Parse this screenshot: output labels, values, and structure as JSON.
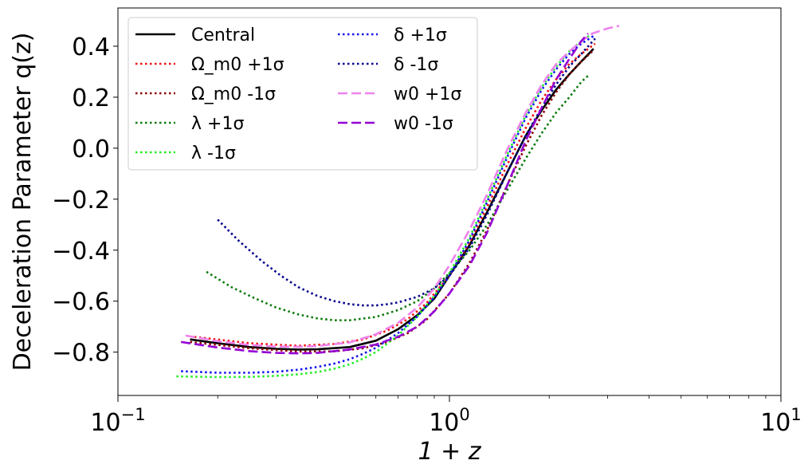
{
  "chart_data": {
    "type": "line",
    "xscale": "log",
    "xlim": [
      0.1,
      10
    ],
    "ylim": [
      -0.97,
      0.55
    ],
    "xlabel": "1 + z",
    "ylabel": "Deceleration Parameter q(z)",
    "x_ticks": [
      {
        "value": 0.1,
        "base": "10",
        "exp": "−1"
      },
      {
        "value": 1,
        "base": "10",
        "exp": "0"
      },
      {
        "value": 10,
        "base": "10",
        "exp": "1"
      }
    ],
    "y_ticks": [
      {
        "value": 0.4,
        "label": "0.4"
      },
      {
        "value": 0.2,
        "label": "0.2"
      },
      {
        "value": 0.0,
        "label": "0.0"
      },
      {
        "value": -0.2,
        "label": "−0.2"
      },
      {
        "value": -0.4,
        "label": "−0.4"
      },
      {
        "value": -0.6,
        "label": "−0.6"
      },
      {
        "value": -0.8,
        "label": "−0.8"
      }
    ],
    "legend_position": "top-left",
    "legend_columns": 2,
    "series": [
      {
        "name": "Central",
        "color": "#000000",
        "style": "solid",
        "x": [
          0.165,
          0.2,
          0.25,
          0.3,
          0.35,
          0.4,
          0.5,
          0.6,
          0.7,
          0.8,
          0.9,
          1.0,
          1.15,
          1.3,
          1.5,
          1.7,
          1.9,
          2.1,
          2.3,
          2.5,
          2.72
        ],
        "y": [
          -0.75,
          -0.765,
          -0.78,
          -0.787,
          -0.79,
          -0.789,
          -0.78,
          -0.755,
          -0.71,
          -0.655,
          -0.59,
          -0.5,
          -0.38,
          -0.25,
          -0.09,
          0.05,
          0.15,
          0.23,
          0.29,
          0.34,
          0.39
        ]
      },
      {
        "name": "Ω_m0 +1σ",
        "color": "#ee1111",
        "style": "dotted",
        "x": [
          0.17,
          0.25,
          0.35,
          0.45,
          0.55,
          0.65,
          0.75,
          0.85,
          1.0,
          1.15,
          1.3,
          1.5,
          1.7,
          1.9,
          2.1,
          2.3,
          2.5,
          2.75
        ],
        "y": [
          -0.74,
          -0.765,
          -0.775,
          -0.768,
          -0.75,
          -0.715,
          -0.67,
          -0.61,
          -0.5,
          -0.37,
          -0.23,
          -0.06,
          0.08,
          0.19,
          0.27,
          0.33,
          0.37,
          0.41
        ]
      },
      {
        "name": "Ω_m0 -1σ",
        "color": "#8b0000",
        "style": "dotted",
        "x": [
          0.165,
          0.25,
          0.35,
          0.45,
          0.55,
          0.65,
          0.75,
          0.85,
          1.0,
          1.15,
          1.3,
          1.5,
          1.7,
          1.9,
          2.1,
          2.3,
          2.5,
          2.7
        ],
        "y": [
          -0.76,
          -0.785,
          -0.798,
          -0.797,
          -0.785,
          -0.76,
          -0.725,
          -0.675,
          -0.57,
          -0.45,
          -0.32,
          -0.14,
          0.01,
          0.13,
          0.22,
          0.29,
          0.34,
          0.38
        ]
      },
      {
        "name": "λ +1σ",
        "color": "#0a7a0a",
        "style": "dotted",
        "x": [
          0.185,
          0.22,
          0.26,
          0.3,
          0.35,
          0.4,
          0.45,
          0.5,
          0.6,
          0.7,
          0.8,
          0.9,
          1.0,
          1.15,
          1.3,
          1.5,
          1.7,
          1.9,
          2.1,
          2.3,
          2.5,
          2.65
        ],
        "y": [
          -0.485,
          -0.545,
          -0.59,
          -0.625,
          -0.652,
          -0.668,
          -0.675,
          -0.675,
          -0.662,
          -0.635,
          -0.6,
          -0.55,
          -0.49,
          -0.4,
          -0.3,
          -0.16,
          -0.04,
          0.06,
          0.14,
          0.2,
          0.26,
          0.29
        ]
      },
      {
        "name": "λ -1σ",
        "color": "#22ee22",
        "style": "dotted",
        "x": [
          0.15,
          0.2,
          0.25,
          0.3,
          0.35,
          0.4,
          0.45,
          0.5,
          0.55,
          0.6,
          0.7,
          0.8,
          0.9,
          1.0,
          1.15,
          1.3,
          1.5,
          1.7,
          1.9,
          2.1,
          2.3,
          2.5,
          2.7
        ],
        "y": [
          -0.895,
          -0.898,
          -0.897,
          -0.893,
          -0.887,
          -0.878,
          -0.865,
          -0.848,
          -0.825,
          -0.8,
          -0.735,
          -0.66,
          -0.58,
          -0.49,
          -0.35,
          -0.2,
          -0.02,
          0.13,
          0.24,
          0.32,
          0.38,
          0.42,
          0.45
        ]
      },
      {
        "name": "δ +1σ",
        "color": "#1010ee",
        "style": "dotted",
        "x": [
          0.155,
          0.2,
          0.25,
          0.3,
          0.35,
          0.4,
          0.45,
          0.5,
          0.55,
          0.6,
          0.7,
          0.8,
          0.9,
          1.0,
          1.15,
          1.3,
          1.5,
          1.7,
          1.9,
          2.1,
          2.3,
          2.5,
          2.72
        ],
        "y": [
          -0.875,
          -0.881,
          -0.881,
          -0.877,
          -0.869,
          -0.858,
          -0.845,
          -0.828,
          -0.806,
          -0.783,
          -0.725,
          -0.66,
          -0.585,
          -0.5,
          -0.36,
          -0.21,
          -0.03,
          0.12,
          0.23,
          0.31,
          0.37,
          0.41,
          0.44
        ]
      },
      {
        "name": "δ -1σ",
        "color": "#00008b",
        "style": "dotted",
        "x": [
          0.2,
          0.23,
          0.27,
          0.31,
          0.35,
          0.4,
          0.45,
          0.5,
          0.55,
          0.6,
          0.65,
          0.7,
          0.8,
          0.9,
          1.0,
          1.15,
          1.3,
          1.5,
          1.7,
          1.9,
          2.1,
          2.3,
          2.5,
          2.75
        ],
        "y": [
          -0.28,
          -0.36,
          -0.44,
          -0.5,
          -0.545,
          -0.58,
          -0.6,
          -0.612,
          -0.617,
          -0.617,
          -0.612,
          -0.605,
          -0.583,
          -0.55,
          -0.5,
          -0.39,
          -0.26,
          -0.09,
          0.05,
          0.16,
          0.25,
          0.32,
          0.37,
          0.43
        ]
      },
      {
        "name": "w0 +1σ",
        "color": "#ee82ee",
        "style": "dashed",
        "x": [
          0.16,
          0.2,
          0.25,
          0.3,
          0.35,
          0.4,
          0.5,
          0.6,
          0.7,
          0.8,
          0.9,
          1.0,
          1.15,
          1.3,
          1.5,
          1.7,
          1.9,
          2.1,
          2.3,
          2.5,
          2.7,
          3.0,
          3.25
        ],
        "y": [
          -0.735,
          -0.757,
          -0.772,
          -0.778,
          -0.779,
          -0.776,
          -0.762,
          -0.73,
          -0.685,
          -0.625,
          -0.55,
          -0.46,
          -0.32,
          -0.18,
          0.0,
          0.14,
          0.25,
          0.33,
          0.38,
          0.42,
          0.45,
          0.47,
          0.48
        ]
      },
      {
        "name": "w0 -1σ",
        "color": "#9400d3",
        "style": "dashed",
        "x": [
          0.155,
          0.2,
          0.25,
          0.3,
          0.35,
          0.4,
          0.5,
          0.6,
          0.7,
          0.8,
          0.9,
          1.0,
          1.15,
          1.3,
          1.5,
          1.7,
          1.9,
          2.1,
          2.3,
          2.5,
          2.62
        ],
        "y": [
          -0.76,
          -0.782,
          -0.796,
          -0.803,
          -0.805,
          -0.803,
          -0.79,
          -0.77,
          -0.74,
          -0.7,
          -0.64,
          -0.57,
          -0.46,
          -0.33,
          -0.14,
          0.03,
          0.16,
          0.27,
          0.35,
          0.42,
          0.45
        ]
      }
    ]
  }
}
